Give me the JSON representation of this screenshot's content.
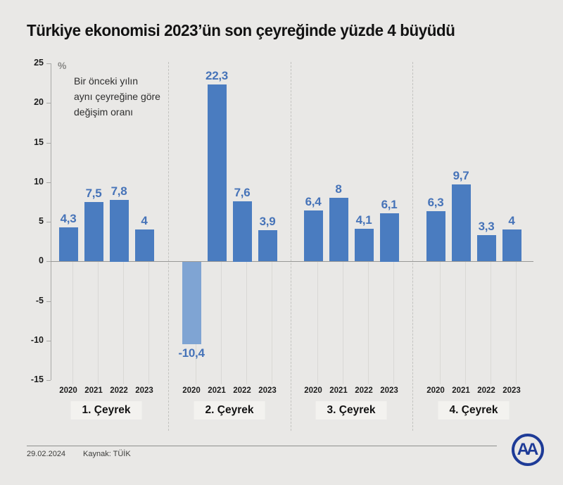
{
  "title": "Türkiye ekonomisi 2023’ün son çeyreğinde yüzde 4 büyüdü",
  "note": {
    "symbol": "%",
    "lines": [
      "Bir önceki yılın",
      "aynı çeyreğine göre",
      "değişim oranı"
    ]
  },
  "chart_data": {
    "type": "bar",
    "title": "Türkiye ekonomisi 2023’ün son çeyreğinde yüzde 4 büyüdü",
    "ylabel": "% Bir önceki yılın aynı çeyreğine göre değişim oranı",
    "ylim": [
      -15,
      25
    ],
    "yticks": [
      25,
      20,
      15,
      10,
      5,
      0,
      -5,
      -10,
      -15
    ],
    "grid": "vertical-below-zero",
    "legend_position": "none",
    "categories": [
      "2020",
      "2021",
      "2022",
      "2023"
    ],
    "groups": [
      {
        "label": "1. Çeyrek",
        "values": [
          4.3,
          7.5,
          7.8,
          4
        ],
        "display": [
          "4,3",
          "7,5",
          "7,8",
          "4"
        ]
      },
      {
        "label": "2. Çeyrek",
        "values": [
          -10.4,
          22.3,
          7.6,
          3.9
        ],
        "display": [
          "-10,4",
          "22,3",
          "7,6",
          "3,9"
        ]
      },
      {
        "label": "3. Çeyrek",
        "values": [
          6.4,
          8,
          4.1,
          6.1
        ],
        "display": [
          "6,4",
          "8",
          "4,1",
          "6,1"
        ]
      },
      {
        "label": "4. Çeyrek",
        "values": [
          6.3,
          9.7,
          3.3,
          4
        ],
        "display": [
          "6,3",
          "9,7",
          "3,3",
          "4"
        ]
      }
    ],
    "colors": {
      "bar_positive": "#4a7cc0",
      "bar_negative": "#7fa4d3",
      "value_label": "#4673b8",
      "background": "#e9e8e6"
    }
  },
  "footer": {
    "date": "29.02.2024",
    "source": "Kaynak: TÜİK",
    "logo_text": "AA"
  }
}
